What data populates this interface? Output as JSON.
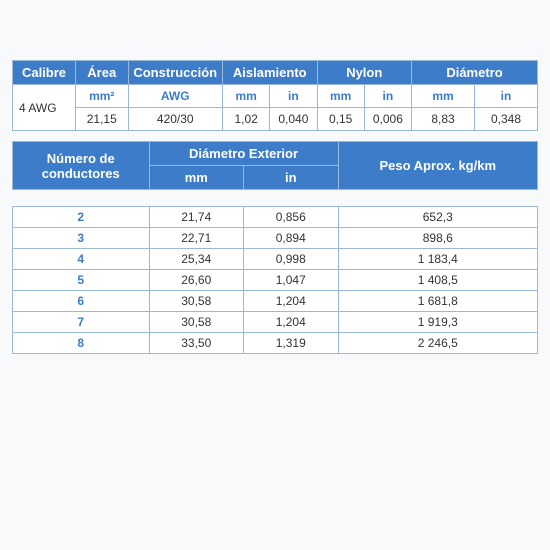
{
  "table1": {
    "headers": {
      "calibre": "Calibre",
      "area": "Área",
      "construccion": "Construcción",
      "aislamiento": "Aislamiento",
      "nylon": "Nylon",
      "diametro": "Diámetro"
    },
    "subheaders": {
      "area_unit": "mm²",
      "construccion_unit": "AWG",
      "mm": "mm",
      "in": "in"
    },
    "row": {
      "calibre": "4 AWG",
      "area": "21,15",
      "construccion": "420/30",
      "aisl_mm": "1,02",
      "aisl_in": "0,040",
      "nylon_mm": "0,15",
      "nylon_in": "0,006",
      "diam_mm": "8,83",
      "diam_in": "0,348"
    }
  },
  "table2": {
    "headers": {
      "num_cond": "Número de conductores",
      "diam_ext": "Diámetro Exterior",
      "peso": "Peso Aprox. kg/km",
      "mm": "mm",
      "in": "in"
    },
    "rows": [
      {
        "n": "2",
        "mm": "21,74",
        "in": "0,856",
        "peso": "652,3"
      },
      {
        "n": "3",
        "mm": "22,71",
        "in": "0,894",
        "peso": "898,6"
      },
      {
        "n": "4",
        "mm": "25,34",
        "in": "0,998",
        "peso": "1 183,4"
      },
      {
        "n": "5",
        "mm": "26,60",
        "in": "1,047",
        "peso": "1 408,5"
      },
      {
        "n": "6",
        "mm": "30,58",
        "in": "1,204",
        "peso": "1 681,8"
      },
      {
        "n": "7",
        "mm": "30,58",
        "in": "1,204",
        "peso": "1 919,3"
      },
      {
        "n": "8",
        "mm": "33,50",
        "in": "1,319",
        "peso": "2 246,5"
      }
    ]
  },
  "style": {
    "header_bg": "#3d7cc9",
    "header_color": "#ffffff",
    "border_color": "#9bb8d8",
    "blue_text": "#3d7cc9",
    "body_bg": "#f8f9fb",
    "font_size_header": 13,
    "font_size_body": 12
  }
}
